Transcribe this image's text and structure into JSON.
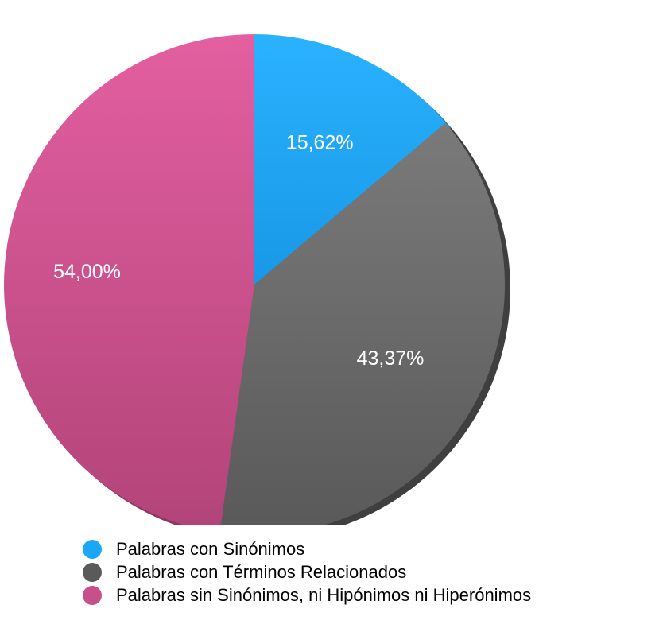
{
  "chart_data": {
    "type": "pie",
    "slices": [
      {
        "name": "Palabras con Sinónimos",
        "value": 15.62,
        "label": "15,62%",
        "color": "#1aa7f5"
      },
      {
        "name": "Palabras con Términos Relacionados",
        "value": 43.37,
        "label": "43,37%",
        "color": "#666666"
      },
      {
        "name": "Palabras sin Sinónimos, ni Hipónimos ni Hiperónimos",
        "value": 54.0,
        "label": "54,00%",
        "color": "#cc4f8a"
      }
    ],
    "legend_position": "bottom-left",
    "start_angle": "top (12 o'clock), clockwise",
    "style": "3D extruded pie"
  },
  "legend": {
    "items": [
      {
        "label": "Palabras con Sinónimos",
        "color": "#1aa7f5"
      },
      {
        "label": "Palabras con Términos Relacionados",
        "color": "#5a5a5a"
      },
      {
        "label": "Palabras sin Sinónimos, ni Hipónimos ni Hiperónimos",
        "color": "#c7508a"
      }
    ]
  }
}
